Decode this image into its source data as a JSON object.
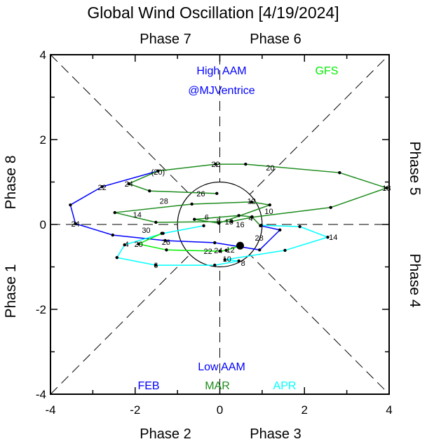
{
  "chart_data": {
    "type": "line",
    "title": "Global Wind Oscillation [4/19/2024]",
    "xlim": [
      -4,
      4
    ],
    "ylim": [
      -4,
      4
    ],
    "xticks": [
      "-4",
      "-2",
      "0",
      "2",
      "4"
    ],
    "yticks": [
      "4",
      "2",
      "0",
      "-2",
      "-4"
    ],
    "phase_labels": {
      "top_left": "Phase 7",
      "top_right": "Phase 6",
      "bottom_left": "Phase 2",
      "bottom_right": "Phase 3",
      "left_upper": "Phase 8",
      "left_lower": "Phase 1",
      "right_upper": "Phase 5",
      "right_lower": "Phase 4"
    },
    "annotations": {
      "high": "High AAM",
      "credit": "@MJVentrice",
      "low": "Low AAM"
    },
    "legend": [
      {
        "name": "FEB",
        "color": "#0000ff",
        "placement": "bottom-left"
      },
      {
        "name": "MAR",
        "color": "#1e8c1e",
        "placement": "bottom-center"
      },
      {
        "name": "APR",
        "color": "#00ffff",
        "placement": "bottom-right"
      },
      {
        "name": "GFS",
        "color": "#00ee00",
        "placement": "top-right"
      }
    ],
    "series": [
      {
        "name": "FEB",
        "color": "#0000ff",
        "points": [
          [
            -1.46,
            1.26
          ],
          [
            -2.78,
            0.89
          ],
          [
            -3.53,
            0.46
          ],
          [
            -3.41,
            0.02
          ],
          [
            -2.53,
            -0.25
          ],
          [
            -1.29,
            -0.38
          ],
          [
            -0.12,
            -0.43
          ],
          [
            0.94,
            -0.6
          ],
          [
            1.42,
            -0.13
          ],
          [
            0.96,
            -0.03
          ]
        ],
        "labels": [
          {
            "t": "(20)",
            "x": -1.46,
            "y": 1.24
          },
          {
            "t": "22",
            "x": -2.78,
            "y": 0.88
          },
          {
            "t": "24",
            "x": -3.41,
            "y": 0.02
          },
          {
            "t": "26",
            "x": -1.27,
            "y": -0.41
          },
          {
            "t": "28",
            "x": 0.93,
            "y": -0.31
          }
        ]
      },
      {
        "name": "MAR",
        "color": "#1e8c1e",
        "points": [
          [
            0.96,
            -0.03
          ],
          [
            0.76,
            0.18
          ],
          [
            0.45,
            0.21
          ],
          [
            -0.6,
            0.12
          ],
          [
            -0.02,
            0.03
          ],
          [
            1.18,
            0.46
          ],
          [
            0.75,
            0.53
          ],
          [
            -0.66,
            0.48
          ],
          [
            -2.48,
            0.28
          ],
          [
            -1.51,
            0.05
          ],
          [
            0.28,
            0.07
          ],
          [
            0.76,
            0.17
          ],
          [
            2.62,
            0.4
          ],
          [
            3.94,
            0.86
          ],
          [
            2.83,
            1.22
          ],
          [
            0.61,
            1.42
          ],
          [
            -0.1,
            1.42
          ],
          [
            -1.46,
            1.26
          ],
          [
            -2.15,
            0.96
          ],
          [
            -1.66,
            0.79
          ],
          [
            -0.07,
            0.73
          ]
        ],
        "labels": [
          {
            "t": "4",
            "x": 0.73,
            "y": 0.15
          },
          {
            "t": "6",
            "x": -0.31,
            "y": 0.17
          },
          {
            "t": "8",
            "x": -0.03,
            "y": 0.08
          },
          {
            "t": "10",
            "x": 1.16,
            "y": 0.31
          },
          {
            "t": "12",
            "x": 0.75,
            "y": 0.55
          },
          {
            "t": "14",
            "x": -1.95,
            "y": 0.23
          },
          {
            "t": "16",
            "x": 0.22,
            "y": 0.07
          },
          {
            "t": "18",
            "x": 3.94,
            "y": 0.86
          },
          {
            "t": "20",
            "x": 1.19,
            "y": 1.34
          },
          {
            "t": "22",
            "x": -0.1,
            "y": 1.42
          },
          {
            "t": "24",
            "x": -2.15,
            "y": 0.96
          },
          {
            "t": "26",
            "x": -0.45,
            "y": 0.73
          },
          {
            "t": "28",
            "x": -1.32,
            "y": 0.55
          },
          {
            "t": "30",
            "x": -1.74,
            "y": 0.05
          }
        ]
      },
      {
        "name": "APR",
        "color": "#00ffff",
        "points": [
          [
            -0.38,
            -0.03
          ],
          [
            -1.34,
            -0.21
          ],
          [
            -2.25,
            -0.48
          ],
          [
            -2.43,
            -0.78
          ],
          [
            -1.51,
            -0.96
          ],
          [
            -0.12,
            -0.96
          ],
          [
            0.45,
            -0.86
          ],
          [
            0.12,
            -0.83
          ],
          [
            1.54,
            -0.61
          ],
          [
            2.55,
            -0.3
          ],
          [
            1.89,
            -0.05
          ],
          [
            0.98,
            -0.02
          ]
        ],
        "labels": [
          {
            "t": "4",
            "x": -2.2,
            "y": -0.46
          },
          {
            "t": "6",
            "x": -1.51,
            "y": -0.96
          },
          {
            "t": "8",
            "x": 0.55,
            "y": -0.91
          },
          {
            "t": "10",
            "x": 0.17,
            "y": -0.81
          },
          {
            "t": "12",
            "x": 0.25,
            "y": -0.78
          },
          {
            "t": "14",
            "x": 2.68,
            "y": -0.3
          },
          {
            "t": "16",
            "x": 0.48,
            "y": 0.0
          }
        ]
      },
      {
        "name": "GFS",
        "color": "#00ee00",
        "points": [
          [
            -1.37,
            -0.21
          ],
          [
            -1.92,
            -0.46
          ],
          [
            -1.26,
            -0.6
          ],
          [
            0.0,
            -0.63
          ],
          [
            0.15,
            -0.61
          ],
          [
            0.48,
            -0.5
          ]
        ],
        "labels": [
          {
            "t": "20",
            "x": -1.92,
            "y": -0.46
          },
          {
            "t": "22",
            "x": -0.28,
            "y": -0.63
          },
          {
            "t": "24",
            "x": 0.18,
            "y": -0.61
          }
        ]
      }
    ],
    "current_point": [
      0.48,
      -0.5
    ],
    "unit_circle_radius": 1
  }
}
